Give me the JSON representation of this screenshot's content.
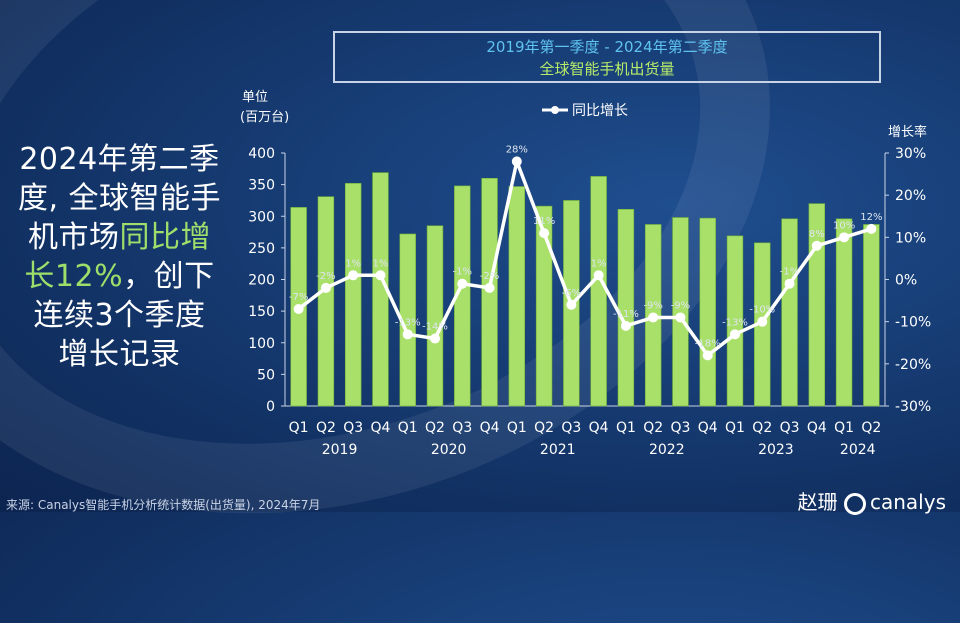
{
  "headline": {
    "line1": "2024年第二季",
    "line2": "度, 全球智能手",
    "line3a": "机市场",
    "line3b": "同比增",
    "line4a": "长12%",
    "line4b": "，创下",
    "line5": "连续3个季度",
    "line6": "增长记录"
  },
  "footer": {
    "source": "来源: Canalys智能手机分析统计数据(出货量), 2024年7月",
    "logo_text": "canalys",
    "logo_prefix": "赵珊"
  },
  "colors": {
    "bar": "#a9e069",
    "bar_edge": "#6fae3a",
    "line": "#ffffff",
    "axis_text": "#ffffff",
    "title_blue": "#5fc3f0",
    "title_green": "#b8ec6a"
  },
  "chart_data": {
    "type": "bar",
    "title": "2019年第一季度 - 2024年第二季度",
    "subtitle": "全球智能手机出货量",
    "ylabel": "单位\n(百万台)",
    "y2label": "增长率",
    "ylim": [
      0,
      400
    ],
    "y2lim": [
      -30,
      30
    ],
    "yticks": [
      0,
      50,
      100,
      150,
      200,
      250,
      300,
      350,
      400
    ],
    "y2ticks": [
      "30%",
      "20%",
      "10%",
      "0%",
      "-10%",
      "-20%",
      "-30%"
    ],
    "grid": false,
    "legend": "top-center",
    "categories": [
      "Q1",
      "Q2",
      "Q3",
      "Q4",
      "Q1",
      "Q2",
      "Q3",
      "Q4",
      "Q1",
      "Q2",
      "Q3",
      "Q4",
      "Q1",
      "Q2",
      "Q3",
      "Q4",
      "Q1",
      "Q2",
      "Q3",
      "Q4",
      "Q1",
      "Q2"
    ],
    "years": [
      {
        "label": "2019",
        "start": 0,
        "end": 3
      },
      {
        "label": "2020",
        "start": 4,
        "end": 7
      },
      {
        "label": "2021",
        "start": 8,
        "end": 11
      },
      {
        "label": "2022",
        "start": 12,
        "end": 15
      },
      {
        "label": "2023",
        "start": 16,
        "end": 19
      },
      {
        "label": "2024",
        "start": 20,
        "end": 21
      }
    ],
    "series": [
      {
        "name": "",
        "kind": "bar",
        "values": [
          314,
          331,
          352,
          369,
          272,
          285,
          348,
          360,
          347,
          316,
          325,
          363,
          311,
          287,
          298,
          297,
          269,
          258,
          296,
          320,
          296,
          287
        ]
      },
      {
        "name": "同比增长",
        "kind": "line",
        "axis": "right",
        "values": [
          -7,
          -2,
          1,
          1,
          -13,
          -14,
          -1,
          -2,
          28,
          11,
          -6,
          1,
          -11,
          -9,
          -9,
          -18,
          -13,
          -10,
          -1,
          8,
          10,
          12
        ],
        "labels": [
          "-7%",
          "-2%",
          "1%",
          "1%",
          "-13%",
          "-14%",
          "-1%",
          "-2%",
          "28%",
          "11%",
          "-6%",
          "1%",
          "-11%",
          "-9%",
          "-9%",
          "-18%",
          "-13%",
          "-10%",
          "-1%",
          "8%",
          "10%",
          "12%"
        ]
      }
    ]
  }
}
